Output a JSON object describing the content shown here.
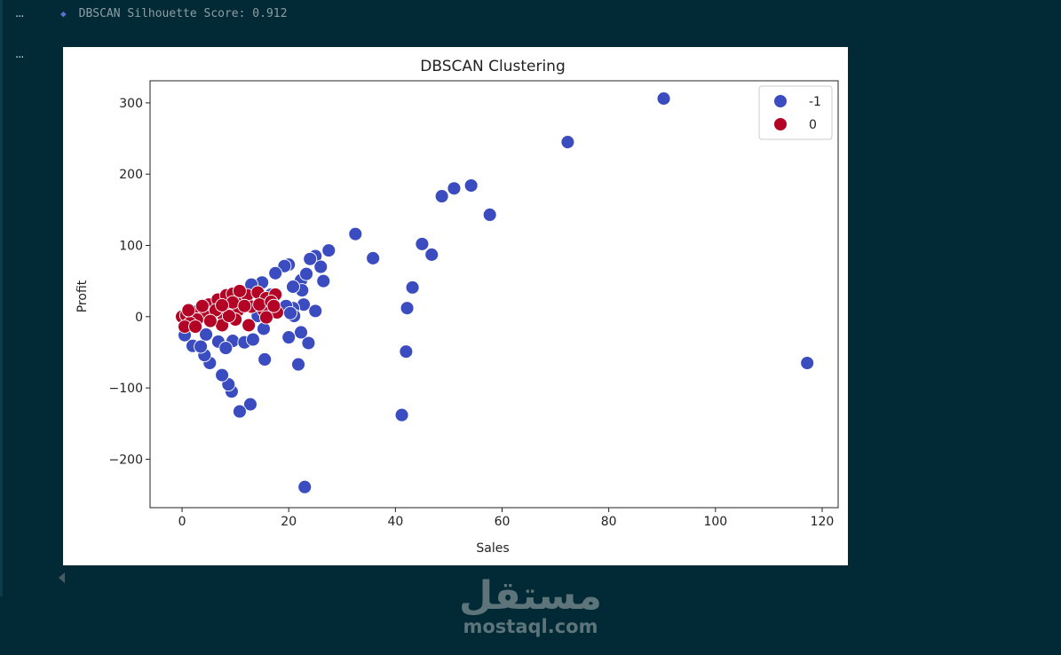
{
  "output": {
    "prompt_marker": "...",
    "marker_icon": "diamond-icon",
    "text": "DBSCAN Silhouette Score: 0.912"
  },
  "watermark": {
    "arabic": "مستقل",
    "latin": "mostaql.com"
  },
  "chart_data": {
    "type": "scatter",
    "title": "DBSCAN Clustering",
    "xlabel": "Sales",
    "ylabel": "Profit",
    "xlim": [
      -6,
      123
    ],
    "ylim": [
      -268,
      331
    ],
    "xticks": [
      "0",
      "20",
      "40",
      "60",
      "80",
      "100",
      "120"
    ],
    "yticks": [
      "−200",
      "−100",
      "0",
      "100",
      "200",
      "300"
    ],
    "grid": false,
    "legend": {
      "placement": "top-right"
    },
    "series": [
      {
        "name": "-1",
        "color": "#3b4cc0",
        "points": [
          [
            90.3,
            306
          ],
          [
            72.3,
            245
          ],
          [
            57.7,
            143
          ],
          [
            54.2,
            184
          ],
          [
            51,
            180
          ],
          [
            48.7,
            169
          ],
          [
            46.8,
            87
          ],
          [
            45,
            102
          ],
          [
            43.2,
            41
          ],
          [
            42.2,
            12
          ],
          [
            42,
            -49
          ],
          [
            41.2,
            -138
          ],
          [
            35.8,
            82
          ],
          [
            32.5,
            116
          ],
          [
            117.2,
            -65
          ],
          [
            23,
            -239
          ],
          [
            27.5,
            93
          ],
          [
            25,
            85
          ],
          [
            26,
            70
          ],
          [
            26.5,
            50
          ],
          [
            25,
            8
          ],
          [
            23.7,
            -37
          ],
          [
            22.3,
            -22
          ],
          [
            21.8,
            -67
          ],
          [
            20,
            -29
          ],
          [
            15.5,
            -60
          ],
          [
            12.8,
            -123
          ],
          [
            10.8,
            -133
          ],
          [
            9.3,
            -105
          ],
          [
            8.7,
            -95
          ],
          [
            7.5,
            -82
          ],
          [
            5.2,
            -65
          ],
          [
            4.2,
            -54
          ],
          [
            9.5,
            -34
          ],
          [
            11.7,
            -36
          ],
          [
            13.3,
            -32
          ],
          [
            15.3,
            -17
          ],
          [
            14.2,
            1
          ],
          [
            4.5,
            -25
          ],
          [
            2,
            -41
          ],
          [
            3.5,
            -42
          ],
          [
            6.8,
            -35
          ],
          [
            8.2,
            -44
          ],
          [
            20,
            73
          ],
          [
            19.2,
            71
          ],
          [
            17.5,
            61
          ],
          [
            15,
            48
          ],
          [
            13,
            45
          ],
          [
            22.3,
            51
          ],
          [
            23.3,
            60
          ],
          [
            24,
            81
          ],
          [
            22.5,
            37
          ],
          [
            20.8,
            42
          ],
          [
            22.8,
            17
          ],
          [
            20.8,
            12
          ],
          [
            19.5,
            15
          ],
          [
            16.7,
            31
          ],
          [
            10.8,
            26
          ],
          [
            8.8,
            17
          ],
          [
            4.5,
            9
          ],
          [
            21,
            1
          ],
          [
            20.3,
            5
          ],
          [
            16.2,
            9
          ],
          [
            1.7,
            -11
          ],
          [
            0.5,
            -26
          ]
        ]
      },
      {
        "name": "0",
        "color": "#b40426",
        "points": [
          [
            0,
            0
          ],
          [
            0.8,
            2
          ],
          [
            2.2,
            6
          ],
          [
            3.3,
            10
          ],
          [
            5,
            17
          ],
          [
            6.7,
            24
          ],
          [
            8.3,
            30
          ],
          [
            9.5,
            32
          ],
          [
            11.2,
            29
          ],
          [
            12.2,
            30
          ],
          [
            14.2,
            34
          ],
          [
            15.8,
            26
          ],
          [
            17.5,
            31
          ],
          [
            17.8,
            6
          ],
          [
            15.3,
            9
          ],
          [
            13,
            14
          ],
          [
            10.5,
            9
          ],
          [
            9.5,
            20
          ],
          [
            7.5,
            4
          ],
          [
            5.8,
            6
          ],
          [
            4.2,
            1
          ],
          [
            2.8,
            -4
          ],
          [
            1.5,
            -9
          ],
          [
            0.5,
            -14
          ],
          [
            7.5,
            -12
          ],
          [
            12.5,
            -12
          ],
          [
            10,
            -4
          ],
          [
            14.5,
            17
          ],
          [
            16.7,
            21
          ],
          [
            11.7,
            15
          ],
          [
            6.3,
            9
          ],
          [
            3.8,
            15
          ],
          [
            1.2,
            9
          ],
          [
            2.5,
            -14
          ],
          [
            5.3,
            -6
          ],
          [
            8.8,
            1
          ],
          [
            15.8,
            -1
          ],
          [
            17.2,
            15
          ],
          [
            10.8,
            36
          ],
          [
            7.5,
            16
          ]
        ]
      }
    ]
  }
}
